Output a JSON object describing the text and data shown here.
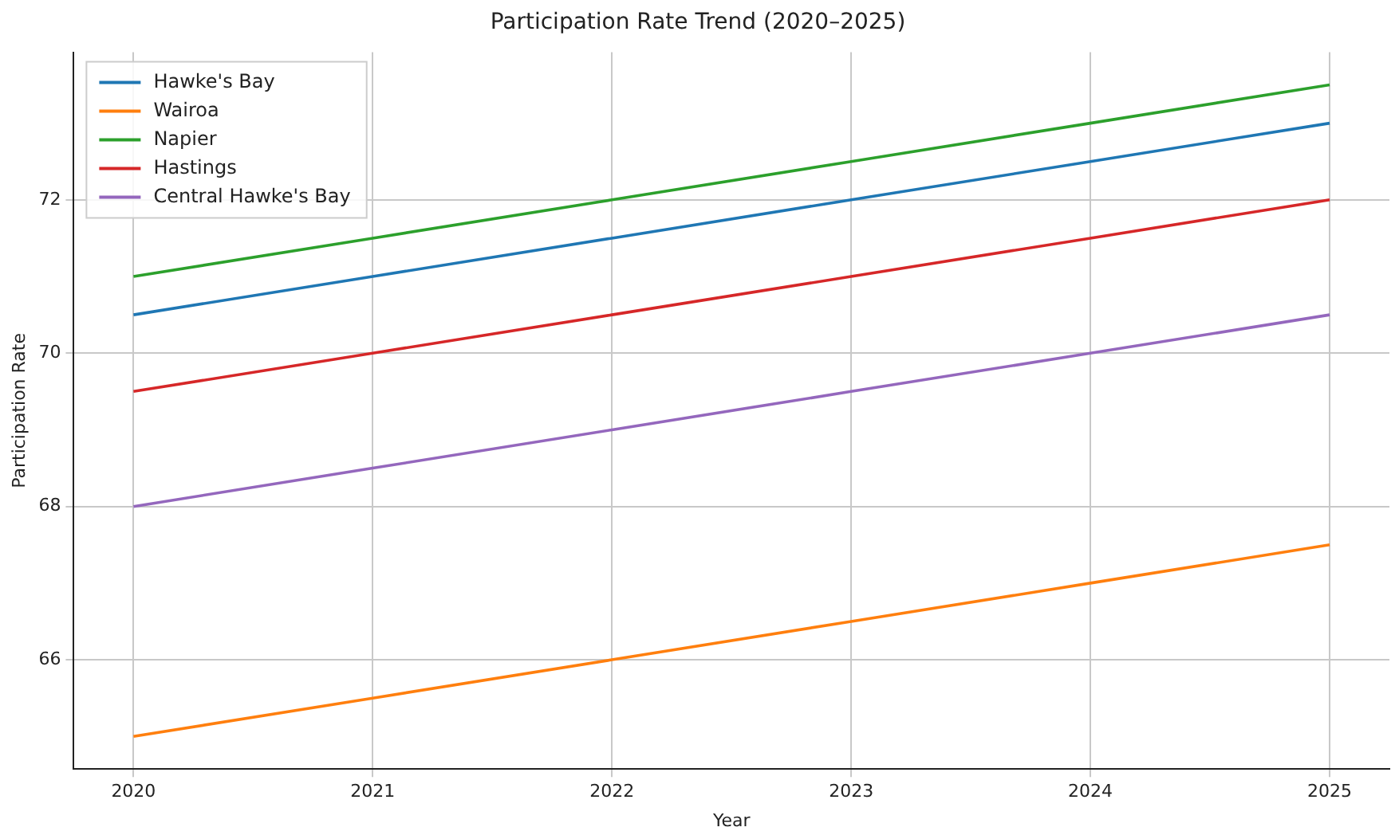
{
  "chart_data": {
    "type": "line",
    "title": "Participation Rate Trend (2020–2025)",
    "xlabel": "Year",
    "ylabel": "Participation Rate",
    "x": [
      2020,
      2021,
      2022,
      2023,
      2024,
      2025
    ],
    "series": [
      {
        "name": "Hawke's Bay",
        "color": "#1f77b4",
        "values": [
          70.5,
          71,
          71.5,
          72,
          72.5,
          73
        ]
      },
      {
        "name": "Wairoa",
        "color": "#ff7f0e",
        "values": [
          65,
          65.5,
          66,
          66.5,
          67,
          67.5
        ]
      },
      {
        "name": "Napier",
        "color": "#2ca02c",
        "values": [
          71,
          71.5,
          72,
          72.5,
          73,
          73.5
        ]
      },
      {
        "name": "Hastings",
        "color": "#d62728",
        "values": [
          69.5,
          70,
          70.5,
          71,
          71.5,
          72
        ]
      },
      {
        "name": "Central Hawke's Bay",
        "color": "#9467bd",
        "values": [
          68,
          68.5,
          69,
          69.5,
          70,
          70.5
        ]
      }
    ],
    "xlim": [
      2019.75,
      2025.25
    ],
    "xticks": [
      2020,
      2021,
      2022,
      2023,
      2024,
      2025
    ],
    "ylim": [
      64.575,
      73.925
    ],
    "yticks": [
      66,
      68,
      70,
      72
    ],
    "grid": true,
    "legend": "top left",
    "marker": "none",
    "line_style": "solid"
  }
}
